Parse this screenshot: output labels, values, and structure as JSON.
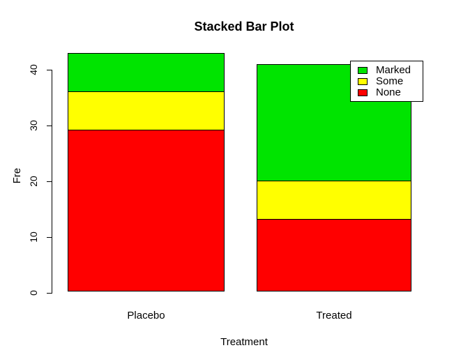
{
  "chart_data": {
    "type": "bar",
    "stacked": true,
    "title": "Stacked Bar Plot",
    "xlabel": "Treatment",
    "ylabel": "Fre",
    "categories": [
      "Placebo",
      "Treated"
    ],
    "series": [
      {
        "name": "None",
        "color": "#FF0000",
        "values": [
          29,
          13
        ]
      },
      {
        "name": "Some",
        "color": "#FFFF00",
        "values": [
          7,
          7
        ]
      },
      {
        "name": "Marked",
        "color": "#00E400",
        "values": [
          7,
          21
        ]
      }
    ],
    "stack_totals": [
      43,
      41
    ],
    "ylim": [
      0,
      43
    ],
    "yticks": [
      0,
      10,
      20,
      30,
      40
    ],
    "grid": false,
    "legend": {
      "position": "top-right",
      "order": [
        "Marked",
        "Some",
        "None"
      ]
    },
    "axis_color": "#000000",
    "background_color": "#ffffff"
  }
}
